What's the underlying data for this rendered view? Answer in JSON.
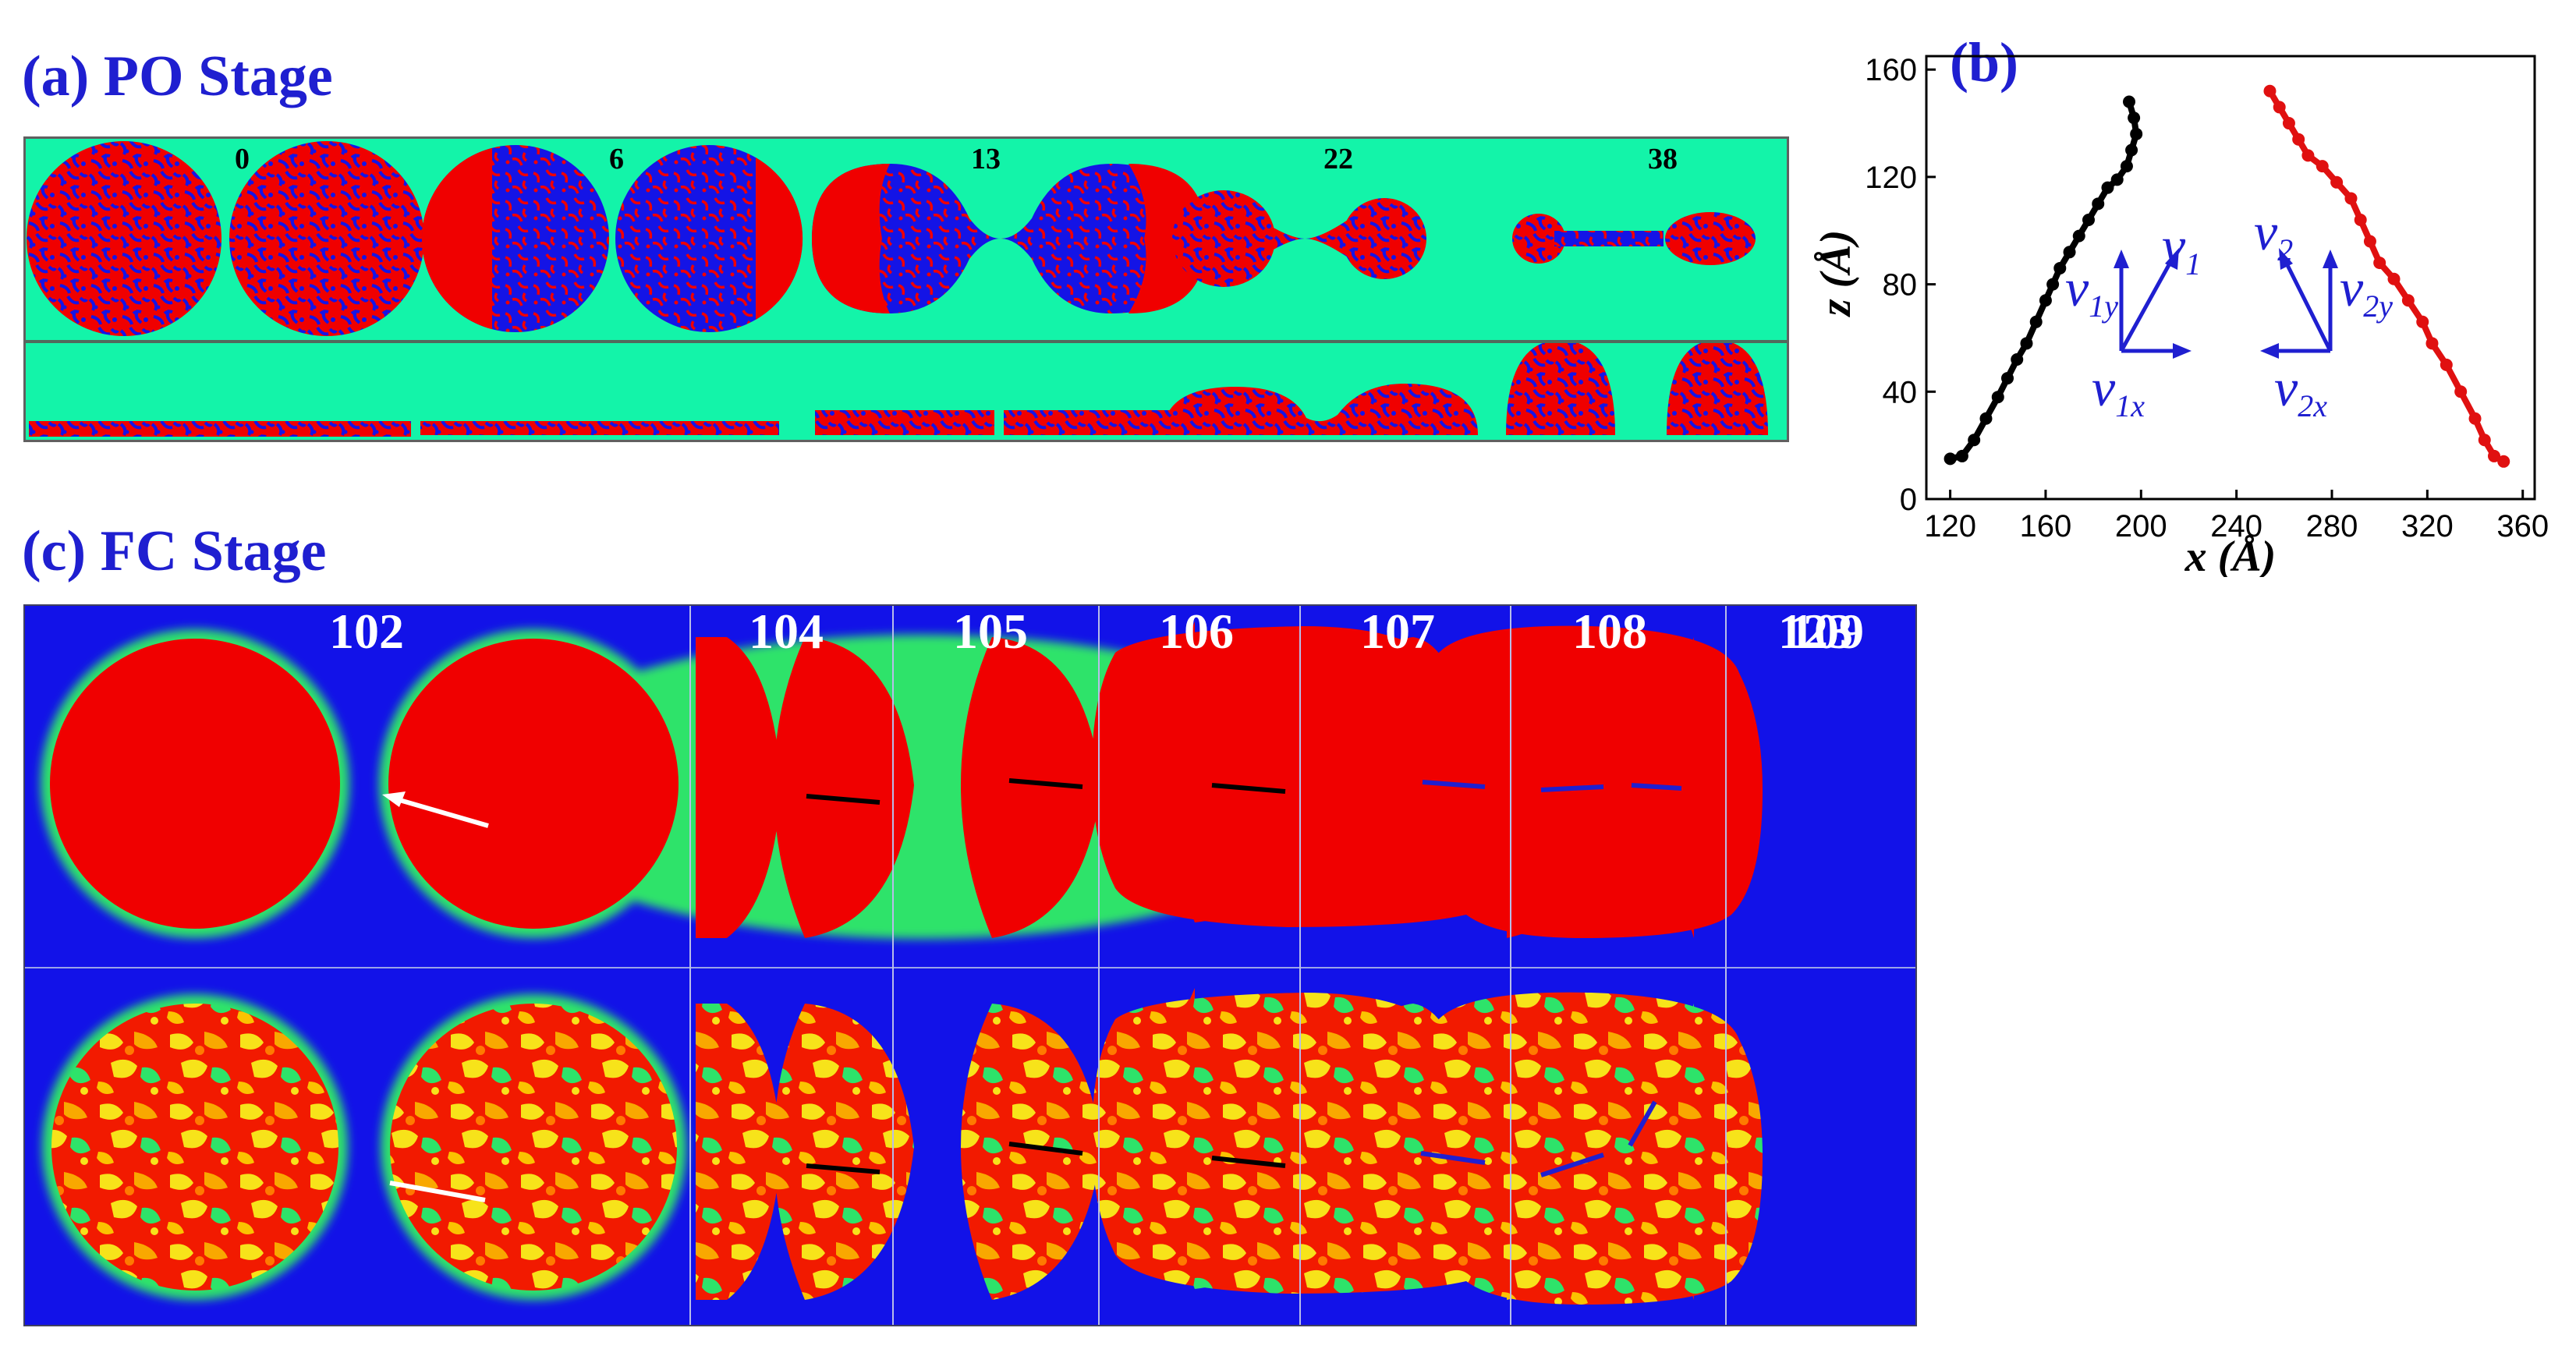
{
  "panel_a": {
    "title": "(a) PO Stage",
    "frame_labels": [
      "0",
      "6",
      "13",
      "22",
      "38"
    ]
  },
  "panel_c": {
    "title": "(c) FC Stage",
    "frame_labels": [
      "102",
      "104",
      "105",
      "106",
      "107",
      "108",
      "109",
      "123"
    ]
  },
  "colors": {
    "background_green": "#13f4a9",
    "droplet_red": "#f00000",
    "droplet_blue": "#1414e6",
    "fc_background": "#1212e8",
    "panel_title_blue": "#1f1fd0",
    "series_left": "#000000",
    "series_right": "#e01010"
  },
  "chart_data": {
    "type": "scatter",
    "panel_label": "(b)",
    "xlabel": "x (Å)",
    "ylabel": "z (Å)",
    "xlim": [
      110,
      365
    ],
    "ylim": [
      0,
      165
    ],
    "xticks": [
      120,
      160,
      200,
      240,
      280,
      320,
      360
    ],
    "yticks": [
      0,
      40,
      80,
      120,
      160
    ],
    "grid": false,
    "series": [
      {
        "color": "#000000",
        "x": [
          120,
          125,
          130,
          135,
          140,
          144,
          148,
          152,
          156,
          160,
          163,
          166,
          170,
          174,
          178,
          182,
          186,
          190,
          194,
          196,
          198,
          197,
          195
        ],
        "y": [
          15,
          16,
          22,
          30,
          38,
          45,
          52,
          58,
          66,
          74,
          80,
          86,
          92,
          98,
          104,
          110,
          116,
          119,
          124,
          130,
          136,
          142,
          148
        ]
      },
      {
        "color": "#e01010",
        "x": [
          254,
          258,
          262,
          266,
          270,
          276,
          282,
          288,
          292,
          296,
          300,
          306,
          312,
          318,
          322,
          328,
          334,
          340,
          344,
          348,
          352
        ],
        "y": [
          152,
          146,
          140,
          134,
          128,
          124,
          118,
          112,
          104,
          96,
          88,
          82,
          74,
          66,
          58,
          50,
          40,
          30,
          22,
          16,
          14
        ]
      }
    ],
    "annotations": {
      "v1": "v",
      "v1_sub": "1",
      "v1y_sub": "1y",
      "v1x_sub": "1x",
      "v2": "v",
      "v2_sub": "2",
      "v2y_sub": "2y",
      "v2x_sub": "2x"
    }
  }
}
